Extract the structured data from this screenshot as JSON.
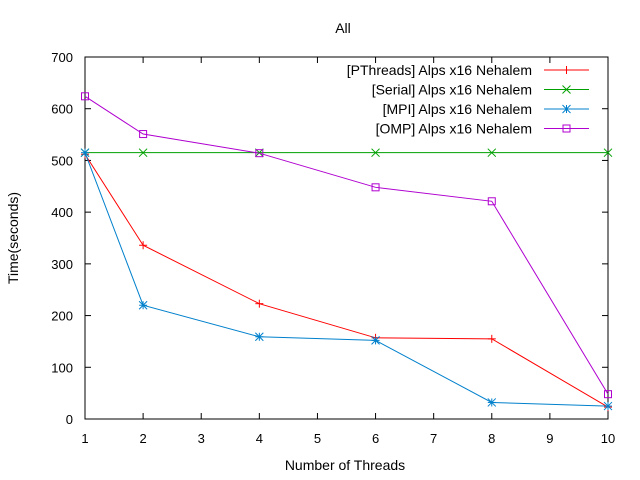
{
  "chart_data": {
    "type": "line",
    "title": "All",
    "xlabel": "Number of Threads",
    "ylabel": "Time(seconds)",
    "xlim": [
      1,
      10
    ],
    "ylim": [
      0,
      700
    ],
    "x_ticks": [
      "1",
      "2",
      "3",
      "4",
      "5",
      "6",
      "7",
      "8",
      "9",
      "10"
    ],
    "y_ticks": [
      "0",
      "100",
      "200",
      "300",
      "400",
      "500",
      "600",
      "700"
    ],
    "grid": false,
    "legend_position": "top-right",
    "x": [
      1,
      2,
      4,
      6,
      8,
      10
    ],
    "series": [
      {
        "name": "[PThreads] Alps x16 Nehalem",
        "color": "#ff0000",
        "marker": "plus",
        "values": [
          512,
          336,
          223,
          157,
          155,
          23
        ]
      },
      {
        "name": "[Serial] Alps x16 Nehalem",
        "color": "#00a000",
        "marker": "cross",
        "values": [
          515,
          515,
          515,
          515,
          515,
          515
        ]
      },
      {
        "name": "[MPI] Alps x16 Nehalem",
        "color": "#0080cc",
        "marker": "star",
        "values": [
          515,
          220,
          159,
          152,
          32,
          25
        ]
      },
      {
        "name": "[OMP] Alps x16 Nehalem",
        "color": "#b000d0",
        "marker": "square",
        "values": [
          624,
          551,
          514,
          448,
          421,
          48
        ]
      }
    ]
  }
}
